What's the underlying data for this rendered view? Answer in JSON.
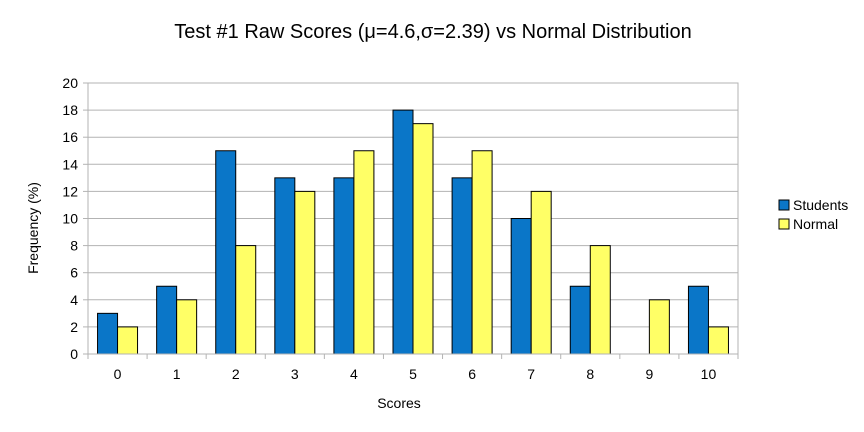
{
  "chart_data": {
    "type": "bar",
    "title": "Test #1 Raw Scores (μ=4.6,σ=2.39) vs Normal Distribution",
    "xlabel": "Scores",
    "ylabel": "Frequency (%)",
    "categories": [
      "0",
      "1",
      "2",
      "3",
      "4",
      "5",
      "6",
      "7",
      "8",
      "9",
      "10"
    ],
    "ylim": [
      0,
      20
    ],
    "yticks": [
      0,
      2,
      4,
      6,
      8,
      10,
      12,
      14,
      16,
      18,
      20
    ],
    "grid": true,
    "legend_position": "right",
    "series": [
      {
        "name": "Students",
        "color": "#0a76c8",
        "values": [
          3,
          5,
          15,
          13,
          13,
          18,
          13,
          10,
          5,
          0,
          5
        ]
      },
      {
        "name": "Normal",
        "color": "#ffff66",
        "values": [
          2,
          4,
          8,
          12,
          15,
          17,
          15,
          12,
          8,
          4,
          2
        ]
      }
    ]
  }
}
